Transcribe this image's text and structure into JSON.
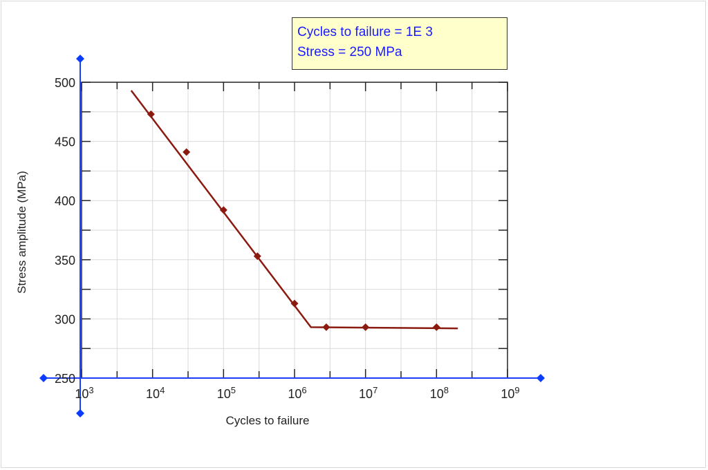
{
  "readout": {
    "cycles_line": "Cycles to failure = 1E 3",
    "stress_line": "Stress = 250 MPa"
  },
  "colors": {
    "series": "#8b1a10",
    "axis": "#1a3dff",
    "handle": "#0a3cff",
    "grid": "#d9d9d9",
    "readout_bg": "#ffffcc",
    "readout_text": "#1a1aff"
  },
  "icons": {
    "axis_handles": "blue-diamond-handle"
  },
  "chart_data": {
    "type": "line",
    "title": "",
    "xlabel": "Cycles to failure",
    "ylabel": "Stress amplitude (MPa)",
    "x_scale": "log",
    "xlim": [
      1000,
      1000000000
    ],
    "ylim": [
      250,
      500
    ],
    "x_ticks": [
      {
        "value": 1000,
        "base": "10",
        "exp": "3"
      },
      {
        "value": 10000,
        "base": "10",
        "exp": "4"
      },
      {
        "value": 100000,
        "base": "10",
        "exp": "5"
      },
      {
        "value": 1000000,
        "base": "10",
        "exp": "6"
      },
      {
        "value": 10000000,
        "base": "10",
        "exp": "7"
      },
      {
        "value": 100000000,
        "base": "10",
        "exp": "8"
      },
      {
        "value": 1000000000,
        "base": "10",
        "exp": "9"
      }
    ],
    "y_ticks": [
      {
        "value": 250,
        "label": "250"
      },
      {
        "value": 300,
        "label": "300"
      },
      {
        "value": 350,
        "label": "350"
      },
      {
        "value": 400,
        "label": "400"
      },
      {
        "value": 450,
        "label": "450"
      },
      {
        "value": 500,
        "label": "500"
      }
    ],
    "grid": true,
    "fit_line": [
      {
        "x": 5000,
        "y": 493
      },
      {
        "x": 1700000,
        "y": 293
      },
      {
        "x": 200000000,
        "y": 292
      }
    ],
    "points": [
      {
        "x": 9500,
        "y": 473
      },
      {
        "x": 30000,
        "y": 441
      },
      {
        "x": 100000,
        "y": 392
      },
      {
        "x": 300000,
        "y": 353
      },
      {
        "x": 1000000,
        "y": 313
      },
      {
        "x": 2800000,
        "y": 293
      },
      {
        "x": 10000000,
        "y": 293
      },
      {
        "x": 100000000,
        "y": 293
      }
    ]
  }
}
